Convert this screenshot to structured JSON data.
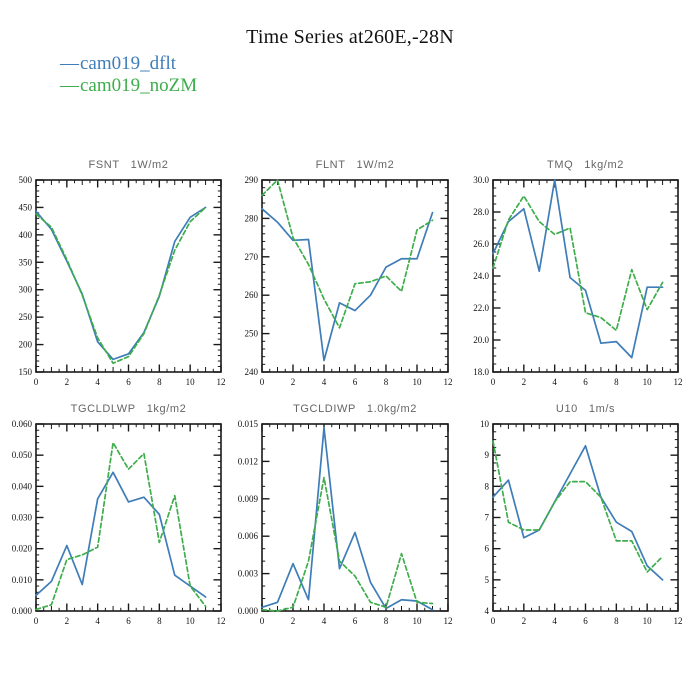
{
  "header": {
    "title": "Time Series at260E,-28N"
  },
  "legend": {
    "position": "top-left",
    "items": [
      {
        "label": "cam019_dflt",
        "swatch": "—",
        "color": "#3e7db8",
        "line_style": "solid"
      },
      {
        "label": "cam019_noZM",
        "swatch": "—",
        "color": "#3ead4b",
        "line_style": "dashed"
      }
    ]
  },
  "chart_data": [
    {
      "key": "fsnt",
      "type": "line",
      "title": "FSNT  1W/m2",
      "units": "1W/m2",
      "xlabel": "",
      "ylabel": "",
      "grid": false,
      "x": [
        0,
        1,
        2,
        3,
        4,
        5,
        6,
        7,
        8,
        9,
        10,
        11
      ],
      "xlim": [
        0,
        12
      ],
      "xtick_major": 2,
      "xtick_mid": 1,
      "xtick_minor": 0.5,
      "xtick_decimals": 0,
      "ylim": [
        150,
        500
      ],
      "ytick_major": 50,
      "ytick_minor": 10,
      "ytick_decimals": 0,
      "series": [
        {
          "name": "cam019_dflt",
          "values": [
            443,
            410,
            352,
            292,
            205,
            173,
            183,
            222,
            288,
            388,
            432,
            450
          ]
        },
        {
          "name": "cam019_noZM",
          "values": [
            438,
            414,
            355,
            290,
            212,
            166,
            178,
            220,
            290,
            372,
            424,
            450
          ]
        }
      ]
    },
    {
      "key": "flnt",
      "type": "line",
      "title": "FLNT  1W/m2",
      "units": "1W/m2",
      "xlabel": "",
      "ylabel": "",
      "grid": false,
      "x": [
        0,
        1,
        2,
        3,
        4,
        5,
        6,
        7,
        8,
        9,
        10,
        11
      ],
      "xlim": [
        0,
        12
      ],
      "xtick_major": 2,
      "xtick_mid": 1,
      "xtick_minor": 0.5,
      "xtick_decimals": 0,
      "ylim": [
        240,
        290
      ],
      "ytick_major": 10,
      "ytick_minor": 2,
      "ytick_decimals": 0,
      "series": [
        {
          "name": "cam019_dflt",
          "values": [
            282.5,
            279,
            274.3,
            274.5,
            243,
            258,
            256,
            260,
            267.3,
            269.5,
            269.5,
            281.5
          ]
        },
        {
          "name": "cam019_noZM",
          "values": [
            286,
            290,
            275,
            268,
            259,
            251.5,
            263,
            263.5,
            265,
            261,
            277,
            279.5
          ]
        }
      ]
    },
    {
      "key": "tmq",
      "type": "line",
      "title": "TMQ  1kg/m2",
      "units": "1kg/m2",
      "xlabel": "",
      "ylabel": "",
      "grid": false,
      "x": [
        0,
        1,
        2,
        3,
        4,
        5,
        6,
        7,
        8,
        9,
        10,
        11
      ],
      "xlim": [
        0,
        12
      ],
      "xtick_major": 2,
      "xtick_mid": 1,
      "xtick_minor": 0.5,
      "xtick_decimals": 0,
      "ylim": [
        18.0,
        30.0
      ],
      "ytick_major": 2.0,
      "ytick_minor": 0.5,
      "ytick_decimals": 1,
      "series": [
        {
          "name": "cam019_dflt",
          "values": [
            25.4,
            27.4,
            28.2,
            24.3,
            30.0,
            23.9,
            23.1,
            19.8,
            19.9,
            18.9,
            23.3,
            23.3
          ]
        },
        {
          "name": "cam019_noZM",
          "values": [
            24.5,
            27.5,
            29.0,
            27.4,
            26.6,
            27.0,
            21.7,
            21.4,
            20.6,
            24.4,
            21.9,
            23.6
          ]
        }
      ]
    },
    {
      "key": "tgcldlwp",
      "type": "line",
      "title": "TGCLDLWP  1kg/m2",
      "units": "1kg/m2",
      "xlabel": "",
      "ylabel": "",
      "grid": false,
      "x": [
        0,
        1,
        2,
        3,
        4,
        5,
        6,
        7,
        8,
        9,
        10,
        11
      ],
      "xlim": [
        0,
        12
      ],
      "xtick_major": 2,
      "xtick_mid": 1,
      "xtick_minor": 0.5,
      "xtick_decimals": 0,
      "ylim": [
        0.0,
        0.06
      ],
      "ytick_major": 0.01,
      "ytick_minor": 0.002,
      "ytick_decimals": 3,
      "series": [
        {
          "name": "cam019_dflt",
          "values": [
            0.005,
            0.0095,
            0.021,
            0.0085,
            0.036,
            0.0445,
            0.035,
            0.0365,
            0.031,
            0.0115,
            0.008,
            0.0045
          ]
        },
        {
          "name": "cam019_noZM",
          "values": [
            0.0005,
            0.002,
            0.0165,
            0.018,
            0.0205,
            0.054,
            0.0455,
            0.0505,
            0.022,
            0.037,
            0.008,
            0.0015
          ]
        }
      ]
    },
    {
      "key": "tgcldiwp",
      "type": "line",
      "title": "TGCLDIWP  1.0kg/m2",
      "units": "1.0kg/m2",
      "xlabel": "",
      "ylabel": "",
      "grid": false,
      "x": [
        0,
        1,
        2,
        3,
        4,
        5,
        6,
        7,
        8,
        9,
        10,
        11
      ],
      "xlim": [
        0,
        12
      ],
      "xtick_major": 2,
      "xtick_mid": 1,
      "xtick_minor": 0.5,
      "xtick_decimals": 0,
      "ylim": [
        0.0,
        0.015
      ],
      "ytick_major": 0.003,
      "ytick_minor": 0.001,
      "ytick_decimals": 3,
      "series": [
        {
          "name": "cam019_dflt",
          "values": [
            0.0003,
            0.0007,
            0.0038,
            0.0009,
            0.0147,
            0.0034,
            0.0063,
            0.0023,
            0.0002,
            0.0009,
            0.0008,
            0.0001
          ]
        },
        {
          "name": "cam019_noZM",
          "values": [
            0.0001,
            0.0,
            0.0003,
            0.004,
            0.0107,
            0.004,
            0.0028,
            0.0007,
            0.0003,
            0.0046,
            0.0007,
            0.0006
          ]
        }
      ]
    },
    {
      "key": "u10",
      "type": "line",
      "title": "U10  1m/s",
      "units": "1m/s",
      "xlabel": "",
      "ylabel": "",
      "grid": false,
      "x": [
        0,
        1,
        2,
        3,
        4,
        5,
        6,
        7,
        8,
        9,
        10,
        11
      ],
      "xlim": [
        0,
        12
      ],
      "xtick_major": 2,
      "xtick_mid": 1,
      "xtick_minor": 0.5,
      "xtick_decimals": 0,
      "ylim": [
        4,
        10
      ],
      "ytick_major": 1,
      "ytick_minor": 0.25,
      "ytick_decimals": 0,
      "series": [
        {
          "name": "cam019_dflt",
          "values": [
            7.65,
            8.2,
            6.35,
            6.6,
            7.5,
            8.4,
            9.3,
            7.65,
            6.85,
            6.55,
            5.45,
            5.0
          ]
        },
        {
          "name": "cam019_noZM",
          "values": [
            9.45,
            6.85,
            6.6,
            6.6,
            7.5,
            8.15,
            8.15,
            7.65,
            6.25,
            6.25,
            5.25,
            5.75
          ]
        }
      ]
    }
  ]
}
